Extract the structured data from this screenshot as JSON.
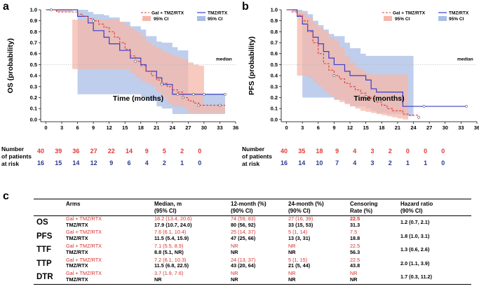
{
  "colors": {
    "gal": "#e03a35",
    "tmz": "#3a3ec8",
    "gal_ci": "#f5b7aa",
    "tmz_ci": "#a9bde6",
    "risk_gal": "#e03a35",
    "risk_tmz": "#2b3a8f"
  },
  "chart_data": [
    {
      "panel": "a",
      "type": "line",
      "title": "",
      "xlabel": "Time (months)",
      "ylabel": "OS (probability)",
      "xlim": [
        -1,
        36
      ],
      "ylim": [
        -0.02,
        1.0
      ],
      "xticks": [
        0,
        3,
        6,
        9,
        12,
        15,
        18,
        21,
        24,
        27,
        30,
        33,
        36
      ],
      "yticks": [
        0.0,
        0.1,
        0.2,
        0.3,
        0.4,
        0.5,
        0.6,
        0.7,
        0.8,
        0.9,
        1.0
      ],
      "median_line": 0.5,
      "median_label": "median",
      "legend": {
        "position": "top-right",
        "entries": [
          "Gal + TMZ/RTX",
          "TMZ/RTX",
          "95% CI",
          "95% CI"
        ]
      },
      "series": [
        {
          "name": "Gal + TMZ/RTX",
          "style": "dashed",
          "x": [
            0,
            1,
            2,
            5,
            6,
            7,
            8,
            9,
            10,
            11,
            12,
            13,
            14,
            15,
            16,
            17,
            18,
            19,
            20,
            21,
            22,
            23,
            24,
            25,
            26,
            27,
            28,
            29,
            30,
            31,
            32,
            33,
            34
          ],
          "y": [
            1.0,
            1.0,
            0.98,
            0.98,
            0.96,
            0.94,
            0.92,
            0.9,
            0.87,
            0.84,
            0.8,
            0.75,
            0.7,
            0.64,
            0.58,
            0.53,
            0.49,
            0.44,
            0.4,
            0.36,
            0.33,
            0.3,
            0.27,
            0.25,
            0.2,
            0.17,
            0.15,
            0.13,
            0.13,
            0.13,
            0.13,
            0.13,
            0.13
          ],
          "ci_lower": [
            1.0,
            1.0,
            0.98,
            0.46,
            0.46,
            0.46,
            0.46,
            0.46,
            0.46,
            0.46,
            0.46,
            0.46,
            0.46,
            0.46,
            0.42,
            0.38,
            0.35,
            0.33,
            0.3,
            0.25,
            0.2,
            0.15,
            0.12,
            0.12,
            0.1,
            0.06,
            0.06,
            0.06,
            0.06,
            0.06,
            0.06,
            0.06,
            0.06
          ],
          "ci_upper": [
            1.0,
            1.0,
            1.0,
            0.91,
            0.91,
            0.91,
            0.91,
            0.91,
            0.91,
            0.91,
            0.91,
            0.91,
            0.89,
            0.86,
            0.83,
            0.8,
            0.76,
            0.71,
            0.67,
            0.65,
            0.62,
            0.6,
            0.58,
            0.56,
            0.55,
            0.52,
            0.5,
            0.49,
            0.13,
            0.13,
            0.13,
            0.13,
            0.13
          ],
          "censor_x": [
            1,
            9,
            17,
            22,
            26,
            29,
            33
          ],
          "censor_y": [
            1.0,
            0.9,
            0.53,
            0.33,
            0.2,
            0.13,
            0.13
          ]
        },
        {
          "name": "TMZ/RTX",
          "style": "solid",
          "x": [
            0,
            6,
            8,
            9,
            11,
            12,
            14,
            16,
            18,
            19,
            21,
            22,
            24,
            25,
            27,
            28,
            30,
            32,
            34
          ],
          "y": [
            1.0,
            0.94,
            0.88,
            0.81,
            0.75,
            0.69,
            0.63,
            0.56,
            0.5,
            0.44,
            0.38,
            0.32,
            0.23,
            0.23,
            0.23,
            0.23,
            0.23,
            0.23,
            0.23
          ],
          "ci_lower": [
            1.0,
            0.23,
            0.23,
            0.23,
            0.23,
            0.23,
            0.23,
            0.23,
            0.2,
            0.17,
            0.12,
            0.1,
            0.05,
            0.05,
            0.05,
            0.05,
            0.05,
            0.05,
            0.05
          ],
          "ci_upper": [
            1.0,
            1.0,
            0.98,
            0.96,
            0.95,
            0.93,
            0.89,
            0.85,
            0.82,
            0.76,
            0.71,
            0.7,
            0.66,
            0.63,
            0.23,
            0.23,
            0.23,
            0.23,
            0.23
          ],
          "censor_x": [
            22,
            25,
            28,
            30,
            34
          ],
          "censor_y": [
            0.32,
            0.23,
            0.23,
            0.23,
            0.23
          ]
        }
      ],
      "risk_table": {
        "label": [
          "Number",
          "of patients",
          "at risk"
        ],
        "times": [
          0,
          3,
          6,
          9,
          12,
          15,
          18,
          21,
          24,
          27
        ],
        "gal": [
          "40",
          "39",
          "36",
          "27",
          "22",
          "14",
          "9",
          "5",
          "2",
          "0"
        ],
        "tmz": [
          "16",
          "15",
          "14",
          "12",
          "9",
          "6",
          "4",
          "2",
          "1",
          "0"
        ]
      }
    },
    {
      "panel": "b",
      "type": "line",
      "title": "",
      "xlabel": "Time (months)",
      "ylabel": "PFS (probability)",
      "xlim": [
        -1,
        36
      ],
      "ylim": [
        -0.02,
        1.0
      ],
      "xticks": [
        0,
        3,
        6,
        9,
        12,
        15,
        18,
        21,
        24,
        27,
        30,
        33,
        36
      ],
      "yticks": [
        0.0,
        0.1,
        0.2,
        0.3,
        0.4,
        0.5,
        0.6,
        0.7,
        0.8,
        0.9,
        1.0
      ],
      "median_line": 0.5,
      "median_label": "median",
      "legend": {
        "position": "top-right",
        "entries": [
          "Gal + TMZ/RTX",
          "TMZ/RTX",
          "95% CI",
          "95% CI"
        ]
      },
      "series": [
        {
          "name": "Gal + TMZ/RTX",
          "style": "dashed",
          "x": [
            0,
            1,
            2,
            3,
            4,
            5,
            6,
            7,
            8,
            9,
            10,
            11,
            12,
            13,
            14,
            15,
            16,
            17,
            18,
            19,
            20,
            21,
            22,
            23,
            24,
            25
          ],
          "y": [
            1.0,
            0.98,
            0.95,
            0.9,
            0.8,
            0.7,
            0.6,
            0.51,
            0.45,
            0.4,
            0.37,
            0.33,
            0.3,
            0.27,
            0.24,
            0.21,
            0.19,
            0.16,
            0.13,
            0.1,
            0.08,
            0.08,
            0.05,
            0.04,
            0.04,
            0.0
          ],
          "ci_lower": [
            1.0,
            0.98,
            0.4,
            0.4,
            0.38,
            0.34,
            0.3,
            0.25,
            0.22,
            0.18,
            0.16,
            0.14,
            0.12,
            0.1,
            0.08,
            0.07,
            0.06,
            0.05,
            0.04,
            0.03,
            0.02,
            0.01,
            0.0,
            0.0,
            0.0,
            0.0
          ],
          "ci_upper": [
            1.0,
            1.0,
            0.99,
            0.97,
            0.93,
            0.88,
            0.84,
            0.8,
            0.75,
            0.72,
            0.66,
            0.58,
            0.52,
            0.48,
            0.45,
            0.42,
            0.41,
            0.41,
            0.41,
            0.41,
            0.41,
            0.41,
            0.41,
            0.0,
            0.0,
            0.0
          ],
          "censor_x": [
            9,
            15,
            25
          ],
          "censor_y": [
            0.4,
            0.21,
            0.02
          ]
        },
        {
          "name": "TMZ/RTX",
          "style": "solid",
          "x": [
            0,
            2,
            3,
            4,
            5,
            6,
            7,
            8,
            9,
            11,
            12,
            14,
            15,
            16,
            17,
            19,
            20,
            21,
            22,
            24,
            26,
            30,
            34
          ],
          "y": [
            1.0,
            0.94,
            0.87,
            0.81,
            0.75,
            0.69,
            0.62,
            0.56,
            0.5,
            0.44,
            0.4,
            0.4,
            0.36,
            0.28,
            0.25,
            0.25,
            0.25,
            0.25,
            0.12,
            0.12,
            0.12,
            0.12,
            0.12
          ],
          "ci_lower": [
            1.0,
            0.94,
            0.2,
            0.2,
            0.2,
            0.2,
            0.2,
            0.2,
            0.18,
            0.15,
            0.12,
            0.12,
            0.1,
            0.08,
            0.06,
            0.05,
            0.05,
            0.05,
            0.03,
            0.12,
            0.12,
            0.12,
            0.12
          ],
          "ci_upper": [
            1.0,
            1.0,
            0.99,
            0.96,
            0.9,
            0.86,
            0.82,
            0.78,
            0.76,
            0.7,
            0.65,
            0.6,
            0.58,
            0.58,
            0.58,
            0.58,
            0.58,
            0.58,
            0.58,
            0.12,
            0.12,
            0.12,
            0.12
          ],
          "censor_x": [
            26,
            34
          ],
          "censor_y": [
            0.12,
            0.12
          ]
        }
      ],
      "risk_table": {
        "label": [
          "Number",
          "of patients",
          "at risk"
        ],
        "times": [
          0,
          3,
          6,
          9,
          12,
          15,
          18,
          21,
          24,
          27
        ],
        "gal": [
          "40",
          "35",
          "18",
          "9",
          "4",
          "3",
          "2",
          "0",
          "0",
          "0"
        ],
        "tmz": [
          "16",
          "14",
          "10",
          "7",
          "4",
          "3",
          "2",
          "1",
          "1",
          "0"
        ]
      }
    }
  ],
  "panel_labels": {
    "a": "a",
    "b": "b",
    "c": "c"
  },
  "table": {
    "headers": {
      "arms": "Arms",
      "median_1": "Median, m",
      "median_2": "(95% CI)",
      "m12_1": "12-month (%)",
      "m12_2": "(90% CI)",
      "m24_1": "24-month (%)",
      "m24_2": "(90% CI)",
      "cens_1": "Censoring",
      "cens_2": "Rate (%)",
      "hr_1": "Hazard ratio",
      "hr_2": "(90% CI)"
    },
    "rows": [
      {
        "endpoint": "OS",
        "gal": {
          "arm": "Gal + TMZ/RTX",
          "median": "18.2  (13.4, 20.6)",
          "m12": "74 (59, 83)",
          "m24": "27 (16, 39)",
          "cens": "22.5"
        },
        "tmz": {
          "arm": "TMZ/RTX",
          "median": "17.9  (10.7, 24.0)",
          "m12": "80 (56, 92)",
          "m24": "33 (15, 53)",
          "cens": "31.3"
        },
        "hr": "1.2 (0.7, 2.1)"
      },
      {
        "endpoint": "PFS",
        "gal": {
          "arm": "Gal + TMZ/RTX",
          "median": "7.6   (6.1, 10.4)",
          "m12": "25 (14, 37)",
          "m24": "5  (1, 14)",
          "cens": "7.5"
        },
        "tmz": {
          "arm": "TMZ/RTX",
          "median": "11.5  (5.4, 15.9)",
          "m12": "47 (25, 66)",
          "m24": "13 (3, 31)",
          "cens": "18.8"
        },
        "hr": "1.8 (1.0, 3.1)"
      },
      {
        "endpoint": "TTF",
        "gal": {
          "arm": "Gal + TMZ/RTX",
          "median": "7.1 (5.5, 8.9)",
          "m12": "NR",
          "m24": "NR",
          "cens": "22.5"
        },
        "tmz": {
          "arm": "TMZ/RTX",
          "median": "8.8 (5.1, NR)",
          "m12": "NR",
          "m24": "NR",
          "cens": "56.3"
        },
        "hr": "1.3 (0.6, 2.6)"
      },
      {
        "endpoint": "TTP",
        "gal": {
          "arm": "Gal + TMZ/RTX",
          "median": "7.2  (6.1, 10.3)",
          "m12": "24 (13, 37)",
          "m24": "5  (1, 15)",
          "cens": "22.5"
        },
        "tmz": {
          "arm": "TMZ/RTX",
          "median": "11.5 (6.8, 22.5)",
          "m12": "43 (20, 64)",
          "m24": "21 (5, 44)",
          "cens": "43.8"
        },
        "hr": "2.0 (1.1, 3.9)"
      },
      {
        "endpoint": "DTR",
        "gal": {
          "arm": "Gal + TMZ/RTX",
          "median": "3.7 (1.9, 7.6)",
          "m12": "NR",
          "m24": "NR",
          "cens": "NR"
        },
        "tmz": {
          "arm": "TMZ/RTX",
          "median": "NR",
          "m12": "NR",
          "m24": "NR",
          "cens": "NR"
        },
        "hr": "1.7 (0.3, 11.2)"
      }
    ]
  }
}
